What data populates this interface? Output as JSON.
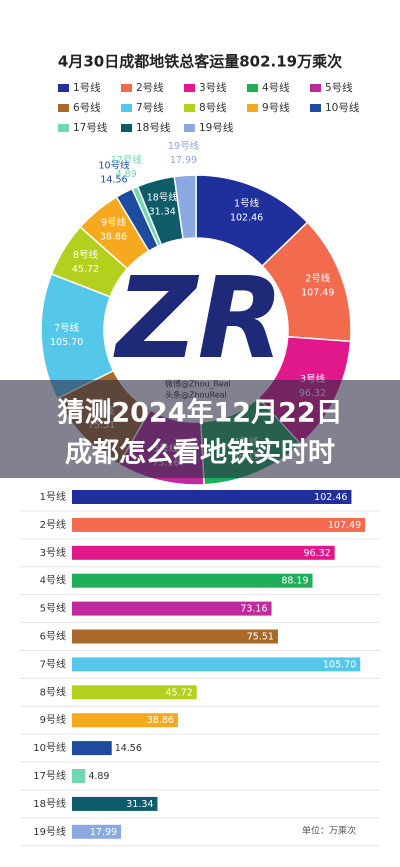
{
  "chart_data": [
    {
      "type": "pie",
      "title": "4月30日成都地铁总客运量802.19万乘次",
      "categories": [
        "1号线",
        "2号线",
        "3号线",
        "4号线",
        "5号线",
        "6号线",
        "7号线",
        "8号线",
        "9号线",
        "10号线",
        "17号线",
        "18号线",
        "19号线"
      ],
      "values": [
        102.46,
        107.49,
        96.32,
        88.19,
        73.16,
        75.51,
        105.7,
        45.72,
        38.86,
        14.56,
        4.89,
        31.34,
        17.99
      ],
      "value_labels": [
        "102.46",
        "107.49",
        "96.32",
        "88.19",
        "73.16",
        "75.51",
        "105.70",
        "45.72",
        "38.86",
        "14.56",
        "4.89",
        "31.34",
        "17.99"
      ],
      "colors": [
        "#1f2f9c",
        "#f26b4f",
        "#e0188c",
        "#1fae5a",
        "#c02aa0",
        "#a8692a",
        "#55c8ea",
        "#b5cf1e",
        "#f6a91f",
        "#1c4ba0",
        "#6fd8b0",
        "#0e5b6a",
        "#8aa9e0"
      ]
    },
    {
      "type": "bar",
      "categories": [
        "1号线",
        "2号线",
        "3号线",
        "4号线",
        "5号线",
        "6号线",
        "7号线",
        "8号线",
        "9号线",
        "10号线",
        "17号线",
        "18号线",
        "19号线"
      ],
      "values": [
        102.46,
        107.49,
        96.32,
        88.19,
        73.16,
        75.51,
        105.7,
        45.72,
        38.86,
        14.56,
        4.89,
        31.34,
        17.99
      ],
      "value_labels": [
        "102.46",
        "107.49",
        "96.32",
        "88.19",
        "73.16",
        "75.51",
        "105.70",
        "45.72",
        "38.86",
        "14.56",
        "4.89",
        "31.34",
        "17.99"
      ],
      "colors": [
        "#1f2f9c",
        "#f26b4f",
        "#e0188c",
        "#1fae5a",
        "#c02aa0",
        "#a8692a",
        "#55c8ea",
        "#b5cf1e",
        "#f6a91f",
        "#1c4ba0",
        "#6fd8b0",
        "#0e5b6a",
        "#8aa9e0"
      ],
      "xlim": [
        0,
        110
      ],
      "unit_label": "单位：万乘次"
    }
  ],
  "watermark": {
    "logo": "ZR",
    "lines": [
      "微博@Zhou_Real",
      "头条@ZhouReal"
    ]
  },
  "overlay_title": [
    "猜测2024年12月22日",
    "成都怎么看地铁实时时"
  ]
}
